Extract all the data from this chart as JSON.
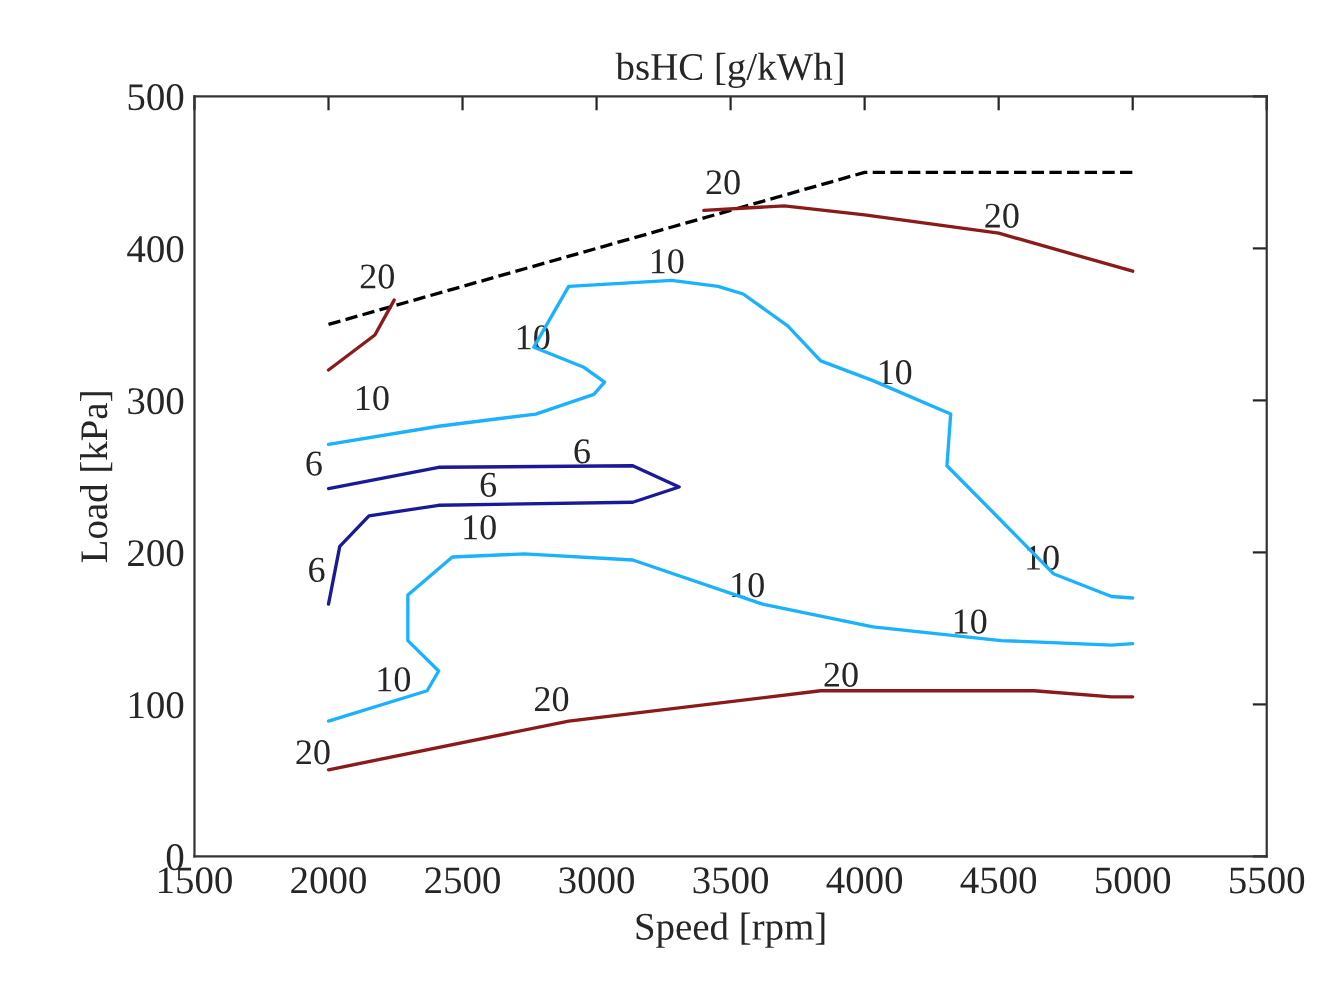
{
  "chart_data": {
    "type": "line",
    "title": "bsHC [g/kWh]",
    "xlabel": "Speed [rpm]",
    "ylabel": "Load [kPa]",
    "xlim": [
      1500,
      5500
    ],
    "xticks": [
      1500,
      2000,
      2500,
      3000,
      3500,
      4000,
      4500,
      5000,
      5500
    ],
    "ylim": [
      0,
      500
    ],
    "yticks": [
      0,
      100,
      200,
      300,
      400,
      500
    ],
    "grid": false,
    "marker": "none",
    "series": [
      {
        "color": "#000000",
        "line_style": "dashed",
        "x": [
          2000,
          4000,
          5000
        ],
        "values": [
          350,
          450,
          450
        ]
      },
      {
        "color": "#8b1a1a",
        "line_style": "solid",
        "x": [
          2000,
          2173,
          2245
        ],
        "values": [
          320,
          343,
          366
        ]
      },
      {
        "color": "#8b1a1a",
        "line_style": "solid",
        "x": [
          3400,
          3700,
          4000,
          4500,
          5000
        ],
        "values": [
          425,
          428,
          422,
          410,
          385
        ]
      },
      {
        "color": "#1ab2ff",
        "line_style": "solid",
        "x": [
          2000,
          2411,
          2773,
          2990,
          3030,
          2950,
          2766,
          2896,
          3280,
          3453,
          3547,
          3713,
          3836,
          4031,
          4321,
          4307,
          4509,
          4704,
          4921,
          5000
        ],
        "values": [
          271,
          283,
          291,
          304,
          312,
          322,
          335,
          375,
          379,
          375,
          370,
          349,
          326,
          313,
          291,
          257,
          221,
          186,
          171,
          170
        ]
      },
      {
        "color": "#1a1a99",
        "line_style": "solid",
        "x": [
          2000,
          2411,
          3135,
          3308,
          3135,
          2411,
          2151,
          2042,
          2000
        ],
        "values": [
          242,
          256,
          257,
          243,
          233,
          231,
          224,
          204,
          166
        ]
      },
      {
        "color": "#1ab2ff",
        "line_style": "solid",
        "x": [
          2000,
          2368,
          2411,
          2296,
          2296,
          2462,
          2730,
          3135,
          3619,
          3836,
          4031,
          4509,
          4921,
          5000
        ],
        "values": [
          89,
          109,
          122,
          142,
          172,
          197,
          199,
          195,
          166,
          158,
          151,
          142,
          139,
          140
        ]
      },
      {
        "color": "#8b1a1a",
        "line_style": "solid",
        "x": [
          2000,
          2896,
          3836,
          4031,
          4632,
          4921,
          5000
        ],
        "values": [
          57,
          89,
          109,
          109,
          109,
          105,
          105
        ]
      }
    ],
    "annotations": [
      {
        "text": "20",
        "x": 2270,
        "y": 365
      },
      {
        "text": "20",
        "x": 3560,
        "y": 427
      },
      {
        "text": "20",
        "x": 4600,
        "y": 405
      },
      {
        "text": "10",
        "x": 3350,
        "y": 375
      },
      {
        "text": "10",
        "x": 2850,
        "y": 325
      },
      {
        "text": "10",
        "x": 2250,
        "y": 285
      },
      {
        "text": "10",
        "x": 4200,
        "y": 302
      },
      {
        "text": "10",
        "x": 4750,
        "y": 180
      },
      {
        "text": "6",
        "x": 2000,
        "y": 242
      },
      {
        "text": "6",
        "x": 3000,
        "y": 250
      },
      {
        "text": "6",
        "x": 2650,
        "y": 228
      },
      {
        "text": "6",
        "x": 2010,
        "y": 172
      },
      {
        "text": "10",
        "x": 2650,
        "y": 200
      },
      {
        "text": "10",
        "x": 3650,
        "y": 162
      },
      {
        "text": "10",
        "x": 4480,
        "y": 138
      },
      {
        "text": "10",
        "x": 2330,
        "y": 100
      },
      {
        "text": "20",
        "x": 2920,
        "y": 87
      },
      {
        "text": "20",
        "x": 4000,
        "y": 103
      },
      {
        "text": "20",
        "x": 2030,
        "y": 52
      }
    ]
  }
}
